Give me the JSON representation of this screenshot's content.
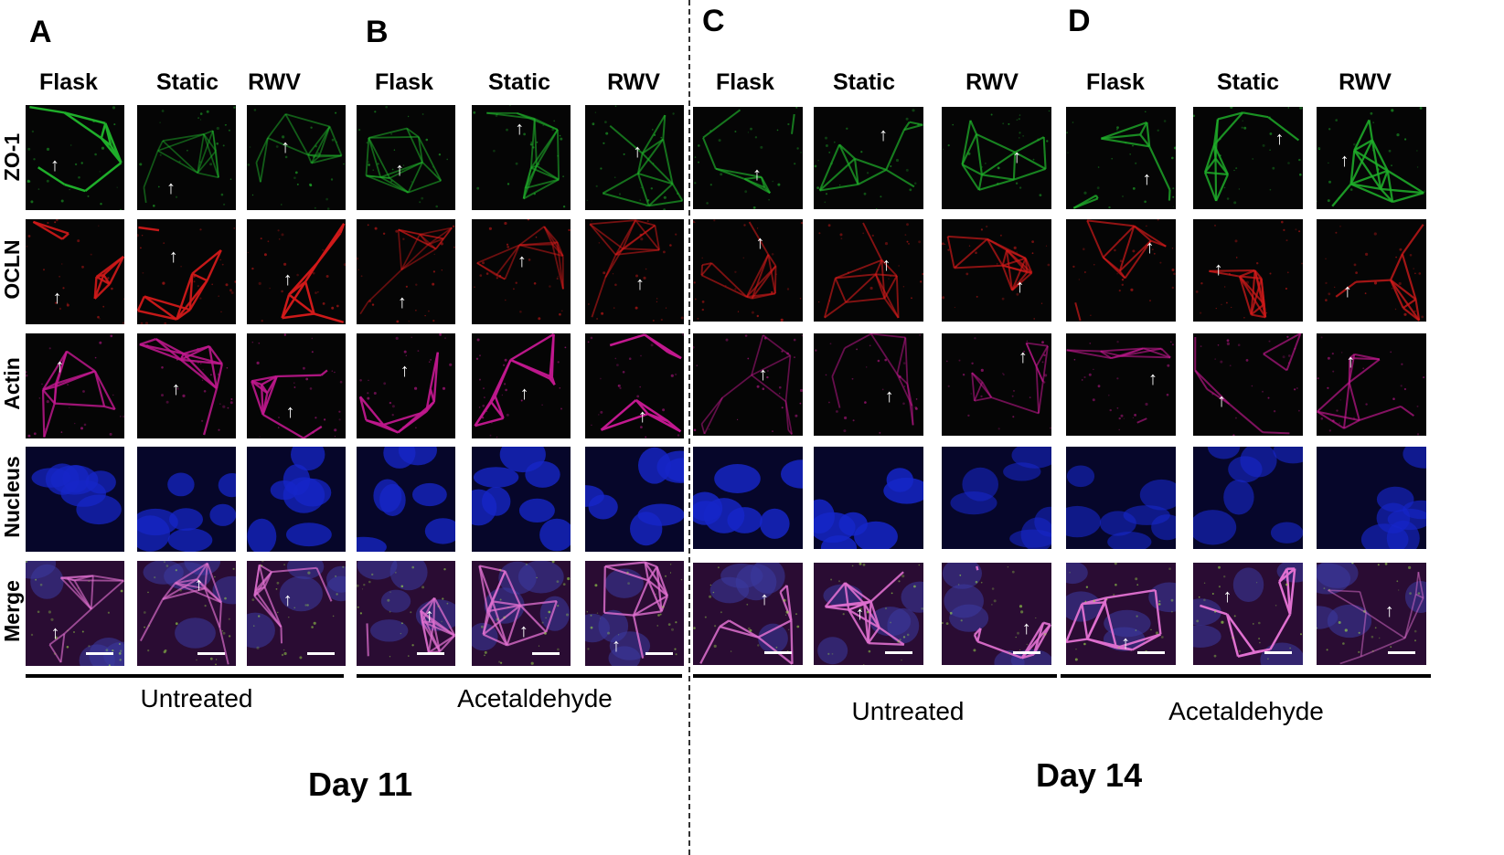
{
  "panel_letters": [
    "A",
    "B",
    "C",
    "D"
  ],
  "column_headers": [
    "Flask",
    "Static",
    "RWV"
  ],
  "row_labels": [
    "ZO-1",
    "OCLN",
    "Actin",
    "Nucleus",
    "Merge"
  ],
  "group_labels": {
    "A_B_left": "Untreated",
    "A_B_right": "Acetaldehyde",
    "C_D_left": "Untreated",
    "C_D_right": "Acetaldehyde"
  },
  "day_labels": {
    "left": "Day 11",
    "right": "Day 14"
  },
  "channel_colors": {
    "ZO-1": "#1fae2a",
    "OCLN": "#d21a1a",
    "Actin": "#c2188f",
    "Nucleus": "#1626c8",
    "Merge": "#a6207a"
  }
}
